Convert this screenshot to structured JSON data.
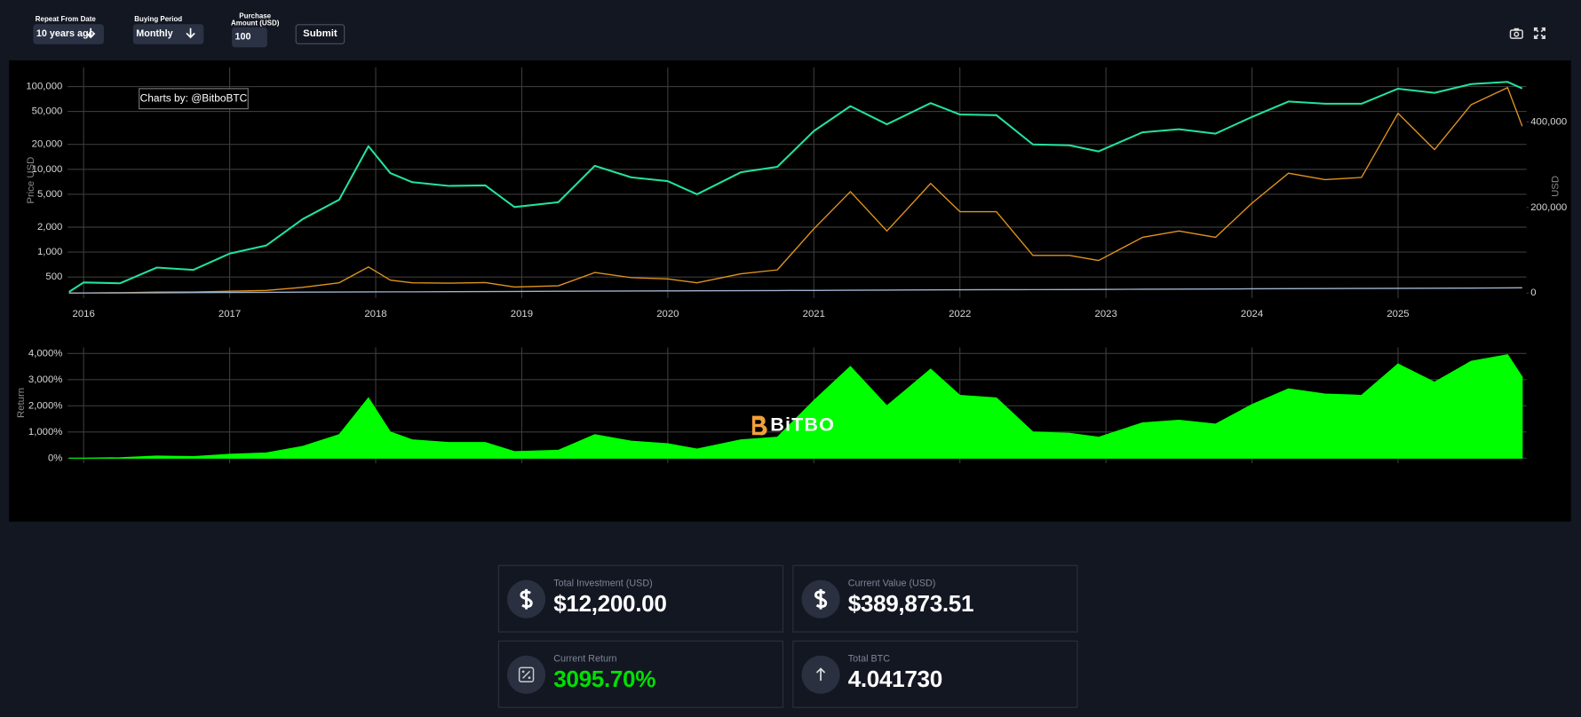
{
  "controls": {
    "start_label": "Repeat From Date",
    "start_value": "10 years ago",
    "period_label": "Buying Period",
    "period_value": "Monthly",
    "amount_label": "Purchase Amount (USD)",
    "amount_value": "100",
    "submit": "Submit"
  },
  "chart_data": [
    {
      "type": "line",
      "y_label": "Price USD",
      "y2_label": "USD",
      "annotation": "Charts by: @BitboBTC",
      "x": [
        2015.9,
        2016.0,
        2016.25,
        2016.5,
        2016.75,
        2017.0,
        2017.25,
        2017.5,
        2017.75,
        2017.95,
        2018.1,
        2018.25,
        2018.5,
        2018.75,
        2018.95,
        2019.25,
        2019.5,
        2019.75,
        2020.0,
        2020.2,
        2020.5,
        2020.75,
        2021.0,
        2021.25,
        2021.5,
        2021.8,
        2022.0,
        2022.25,
        2022.5,
        2022.75,
        2022.95,
        2023.25,
        2023.5,
        2023.75,
        2024.0,
        2024.25,
        2024.5,
        2024.75,
        2025.0,
        2025.25,
        2025.5,
        2025.75,
        2025.85
      ],
      "xlim": [
        2015.89,
        2025.88
      ],
      "xticks": [
        2016,
        2017,
        2018,
        2019,
        2020,
        2021,
        2022,
        2023,
        2024,
        2025
      ],
      "log_scale": true,
      "ylim": [
        320,
        170000
      ],
      "yticks": [
        500,
        {
          "value": 1000,
          "label": "1,000"
        },
        {
          "value": 2000,
          "label": "2,000"
        },
        {
          "value": 5000,
          "label": "5,000"
        },
        {
          "value": 10000,
          "label": "10,000"
        },
        {
          "value": 20000,
          "label": "20,000"
        },
        {
          "value": 50000,
          "label": "50,000"
        },
        {
          "value": 100000,
          "label": "100,000"
        }
      ],
      "y2lim": [
        0,
        527000
      ],
      "y2ticks": [
        0,
        {
          "value": 200000,
          "label": "200,000"
        },
        {
          "value": 400000,
          "label": "400,000"
        }
      ],
      "grid": true,
      "series": [
        {
          "color": "#22e39c",
          "values": [
            330,
            430,
            420,
            650,
            610,
            960,
            1200,
            2500,
            4300,
            19000,
            9000,
            7000,
            6300,
            6400,
            3500,
            4000,
            11000,
            8000,
            7200,
            5000,
            9200,
            10700,
            29000,
            58000,
            35000,
            63000,
            46000,
            45000,
            20000,
            19500,
            16500,
            28000,
            30500,
            27000,
            43000,
            66000,
            62000,
            62000,
            94000,
            84000,
            107000,
            114000,
            95000
          ]
        },
        {
          "color": "#e0941c",
          "axis": "y2",
          "values": [
            0,
            200,
            800,
            2200,
            2400,
            4300,
            6000,
            13500,
            24000,
            61000,
            30000,
            24000,
            23000,
            24500,
            14000,
            17000,
            48000,
            36000,
            33000,
            24000,
            45000,
            54000,
            150000,
            237000,
            145000,
            256000,
            190000,
            190000,
            88000,
            88000,
            76000,
            130000,
            145000,
            130000,
            210000,
            280000,
            265000,
            270000,
            420000,
            335000,
            440000,
            480000,
            389874
          ]
        },
        {
          "color": "#9fb4d0",
          "axis": "y2",
          "values": [
            100,
            220,
            520,
            820,
            1120,
            1420,
            1720,
            2020,
            2320,
            2560,
            2740,
            2920,
            3220,
            3520,
            3760,
            4120,
            4420,
            4720,
            5020,
            5260,
            5620,
            5920,
            6220,
            6520,
            6820,
            7180,
            7420,
            7720,
            8020,
            8320,
            8560,
            8920,
            9220,
            9520,
            9820,
            10120,
            10420,
            10720,
            11020,
            11320,
            11620,
            11920,
            12200
          ]
        }
      ]
    },
    {
      "type": "area",
      "y_label": "Return",
      "watermark": "BiTBO",
      "x": [
        2015.9,
        2016.0,
        2016.25,
        2016.5,
        2016.75,
        2017.0,
        2017.25,
        2017.5,
        2017.75,
        2017.95,
        2018.1,
        2018.25,
        2018.5,
        2018.75,
        2018.95,
        2019.25,
        2019.5,
        2019.75,
        2020.0,
        2020.2,
        2020.5,
        2020.75,
        2021.0,
        2021.25,
        2021.5,
        2021.8,
        2022.0,
        2022.25,
        2022.5,
        2022.75,
        2022.95,
        2023.25,
        2023.5,
        2023.75,
        2024.0,
        2024.25,
        2024.5,
        2024.75,
        2025.0,
        2025.25,
        2025.5,
        2025.75,
        2025.85
      ],
      "xlim": [
        2015.89,
        2025.88
      ],
      "xticks": [
        2016,
        2017,
        2018,
        2019,
        2020,
        2021,
        2022,
        2023,
        2024,
        2025
      ],
      "x_tick_labels": false,
      "ylim": [
        0,
        4230
      ],
      "yticks": [
        {
          "value": 0,
          "label": "0%"
        },
        {
          "value": 1000,
          "label": "1,000%"
        },
        {
          "value": 2000,
          "label": "2,000%"
        },
        {
          "value": 3000,
          "label": "3,000%"
        },
        {
          "value": 4000,
          "label": "4,000%"
        }
      ],
      "grid": true,
      "color": "#00ff00",
      "values": [
        0,
        0,
        20,
        80,
        60,
        150,
        200,
        450,
        900,
        2300,
        1000,
        700,
        600,
        600,
        250,
        300,
        900,
        650,
        550,
        350,
        700,
        800,
        2200,
        3500,
        2000,
        3400,
        2400,
        2300,
        1000,
        950,
        800,
        1350,
        1450,
        1300,
        2050,
        2650,
        2450,
        2400,
        3600,
        2900,
        3700,
        3950,
        3100
      ]
    }
  ],
  "stats": [
    {
      "label": "Total Investment (USD)",
      "value": "$12,200.00",
      "icon": "dollar"
    },
    {
      "label": "Current Value (USD)",
      "value": "$389,873.51",
      "icon": "dollar"
    },
    {
      "label": "Current Return",
      "value": "3095.70%",
      "icon": "percent",
      "value_color": "#00e000"
    },
    {
      "label": "Total BTC",
      "value": "4.041730",
      "icon": "arrow"
    }
  ]
}
